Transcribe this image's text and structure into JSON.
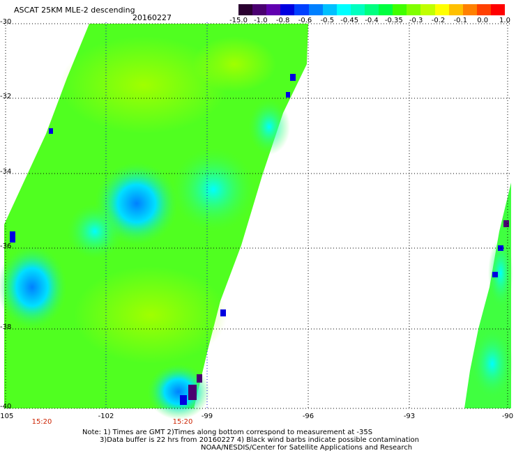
{
  "title": "ASCAT 25KM MLE-2 descending",
  "date": "20160227",
  "colorbar": {
    "colors": [
      "#2a0030",
      "#4a0070",
      "#6000b0",
      "#0000e0",
      "#0040ff",
      "#0080ff",
      "#00c0ff",
      "#00ffff",
      "#00ffc0",
      "#00ff80",
      "#00ff40",
      "#40ff00",
      "#80ff00",
      "#c0ff00",
      "#ffff00",
      "#ffc000",
      "#ff8000",
      "#ff4000",
      "#ff0000"
    ],
    "ticks": [
      "-15.0",
      "-1.0",
      "-0.8",
      "-0.6",
      "-0.5",
      "-0.45",
      "-0.4",
      "-0.35",
      "-0.3",
      "-0.2",
      "-0.1",
      "0.0",
      "1.0"
    ]
  },
  "axes": {
    "lat_labels": [
      "-30",
      "-32",
      "-34",
      "-36",
      "-38",
      "-40"
    ],
    "lon_labels": [
      "-105",
      "-102",
      "-99",
      "-96",
      "-93",
      "-90"
    ],
    "times": [
      "15:20",
      "15:20"
    ]
  },
  "notes": [
    "Note: 1) Times are GMT 2)Times along bottom correspond to measurement at -35S",
    "3)Data buffer is 22 hrs from 20160227 4) Black wind barbs indicate possible contamination",
    "NOAA/NESDIS/Center for Satellite Applications and Research"
  ]
}
